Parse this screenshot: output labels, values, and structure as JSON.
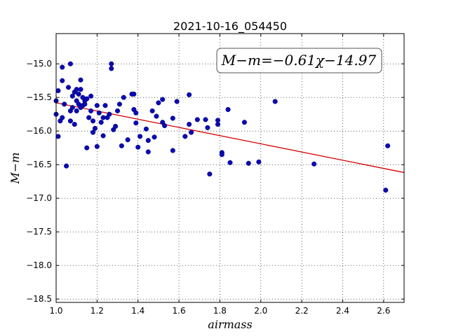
{
  "chart_data": {
    "type": "scatter",
    "title": "2021-10-16_054450",
    "xlabel": "airmass",
    "ylabel": "M−m",
    "annotation": "M−m=−0.61χ−14.97",
    "xlim": [
      1.0,
      2.7
    ],
    "ylim": [
      -18.55,
      -14.55
    ],
    "y_inverted": true,
    "grid": true,
    "x_ticks": [
      "1.0",
      "1.2",
      "1.4",
      "1.6",
      "1.8",
      "2.0",
      "2.2",
      "2.4",
      "2.6"
    ],
    "y_ticks": [
      "−15.0",
      "−15.5",
      "−16.0",
      "−16.5",
      "−17.0",
      "−17.5",
      "−18.0",
      "−18.5"
    ],
    "fit": {
      "slope": -0.61,
      "intercept": -14.97,
      "color": "#d40000"
    },
    "marker_color": "#0a0ab4",
    "points": [
      [
        1.0,
        -15.55
      ],
      [
        1.0,
        -15.75
      ],
      [
        1.01,
        -16.08
      ],
      [
        1.01,
        -15.4
      ],
      [
        1.02,
        -15.85
      ],
      [
        1.03,
        -15.05
      ],
      [
        1.03,
        -15.25
      ],
      [
        1.03,
        -15.8
      ],
      [
        1.04,
        -15.6
      ],
      [
        1.05,
        -16.52
      ],
      [
        1.06,
        -15.35
      ],
      [
        1.07,
        -15.0
      ],
      [
        1.07,
        -15.7
      ],
      [
        1.07,
        -15.85
      ],
      [
        1.08,
        -15.48
      ],
      [
        1.08,
        -15.65
      ],
      [
        1.09,
        -15.42
      ],
      [
        1.09,
        -15.9
      ],
      [
        1.1,
        -15.38
      ],
      [
        1.1,
        -15.55
      ],
      [
        1.1,
        -15.7
      ],
      [
        1.11,
        -15.6
      ],
      [
        1.11,
        -15.45
      ],
      [
        1.12,
        -15.24
      ],
      [
        1.12,
        -15.38
      ],
      [
        1.12,
        -15.65
      ],
      [
        1.13,
        -15.5
      ],
      [
        1.13,
        -15.62
      ],
      [
        1.14,
        -15.55
      ],
      [
        1.14,
        -15.6
      ],
      [
        1.15,
        -15.52
      ],
      [
        1.15,
        -16.25
      ],
      [
        1.16,
        -15.8
      ],
      [
        1.17,
        -15.48
      ],
      [
        1.17,
        -15.7
      ],
      [
        1.18,
        -16.02
      ],
      [
        1.18,
        -15.85
      ],
      [
        1.19,
        -15.96
      ],
      [
        1.2,
        -15.62
      ],
      [
        1.2,
        -16.23
      ],
      [
        1.21,
        -15.73
      ],
      [
        1.22,
        -15.87
      ],
      [
        1.23,
        -15.8
      ],
      [
        1.23,
        -16.07
      ],
      [
        1.24,
        -15.62
      ],
      [
        1.25,
        -15.8
      ],
      [
        1.26,
        -15.75
      ],
      [
        1.27,
        -15.0
      ],
      [
        1.27,
        -15.07
      ],
      [
        1.28,
        -15.98
      ],
      [
        1.29,
        -15.93
      ],
      [
        1.3,
        -15.7
      ],
      [
        1.31,
        -15.6
      ],
      [
        1.32,
        -16.22
      ],
      [
        1.33,
        -15.5
      ],
      [
        1.35,
        -16.13
      ],
      [
        1.37,
        -15.45
      ],
      [
        1.38,
        -15.45
      ],
      [
        1.38,
        -15.68
      ],
      [
        1.39,
        -15.73
      ],
      [
        1.39,
        -15.88
      ],
      [
        1.4,
        -16.24
      ],
      [
        1.41,
        -16.08
      ],
      [
        1.44,
        -15.97
      ],
      [
        1.45,
        -16.14
      ],
      [
        1.45,
        -16.31
      ],
      [
        1.47,
        -15.7
      ],
      [
        1.48,
        -16.09
      ],
      [
        1.49,
        -15.78
      ],
      [
        1.5,
        -15.58
      ],
      [
        1.52,
        -15.53
      ],
      [
        1.52,
        -15.87
      ],
      [
        1.53,
        -15.92
      ],
      [
        1.57,
        -15.81
      ],
      [
        1.57,
        -16.29
      ],
      [
        1.59,
        -15.56
      ],
      [
        1.63,
        -16.08
      ],
      [
        1.65,
        -15.9
      ],
      [
        1.65,
        -15.46
      ],
      [
        1.66,
        -16.02
      ],
      [
        1.69,
        -15.83
      ],
      [
        1.73,
        -15.83
      ],
      [
        1.74,
        -15.95
      ],
      [
        1.75,
        -16.64
      ],
      [
        1.79,
        -15.9
      ],
      [
        1.79,
        -15.84
      ],
      [
        1.81,
        -16.32
      ],
      [
        1.81,
        -16.35
      ],
      [
        1.84,
        -15.68
      ],
      [
        1.85,
        -16.47
      ],
      [
        1.92,
        -15.87
      ],
      [
        1.94,
        -16.48
      ],
      [
        1.99,
        -16.46
      ],
      [
        2.07,
        -15.56
      ],
      [
        2.26,
        -16.49
      ],
      [
        2.61,
        -16.88
      ],
      [
        2.62,
        -16.22
      ]
    ]
  }
}
